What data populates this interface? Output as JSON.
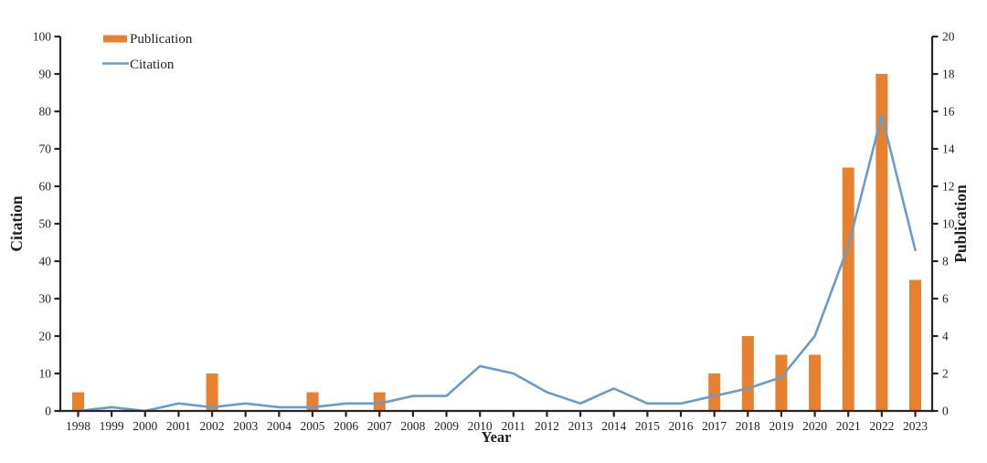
{
  "legend": {
    "publication_label": "Publication",
    "citation_label": "Citation"
  },
  "colors": {
    "bar_orange": "#E8812F",
    "line_blue": "#6B9BC8",
    "axis": "#262626"
  },
  "chart_data": {
    "type": "combo-bar-line",
    "title": "",
    "categories": [
      "1998",
      "1999",
      "2000",
      "2001",
      "2002",
      "2003",
      "2004",
      "2005",
      "2006",
      "2007",
      "2008",
      "2009",
      "2010",
      "2011",
      "2012",
      "2013",
      "2014",
      "2015",
      "2016",
      "2017",
      "2018",
      "2019",
      "2020",
      "2021",
      "2022",
      "2023"
    ],
    "series": [
      {
        "name": "Publication",
        "type": "bar",
        "axis": "right",
        "color": "#E8812F",
        "values": [
          1,
          0,
          0,
          0,
          2,
          0,
          0,
          1,
          0,
          1,
          0,
          0,
          0,
          0,
          0,
          0,
          0,
          0,
          0,
          2,
          4,
          3,
          3,
          13,
          18,
          7
        ]
      },
      {
        "name": "Citation",
        "type": "line",
        "axis": "left",
        "color": "#6B9BC8",
        "values": [
          0,
          1,
          0,
          2,
          1,
          2,
          1,
          1,
          2,
          2,
          4,
          4,
          12,
          10,
          5,
          2,
          6,
          2,
          2,
          4,
          6,
          9,
          20,
          44,
          79,
          43
        ]
      }
    ],
    "left_axis": {
      "title": "Citation",
      "min": 0,
      "max": 100,
      "step": 10
    },
    "right_axis": {
      "title": "Publication",
      "min": 0,
      "max": 20,
      "step": 2
    },
    "x_axis": {
      "title": "Year"
    },
    "legend_position": "top-left",
    "grid": false
  }
}
